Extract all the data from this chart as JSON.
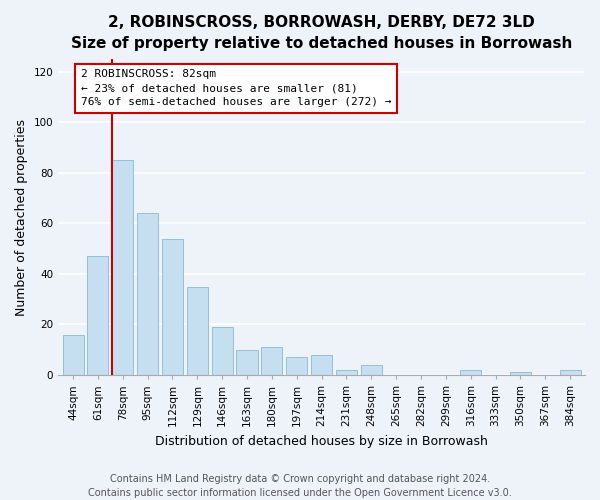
{
  "title": "2, ROBINSCROSS, BORROWASH, DERBY, DE72 3LD",
  "subtitle": "Size of property relative to detached houses in Borrowash",
  "xlabel": "Distribution of detached houses by size in Borrowash",
  "ylabel": "Number of detached properties",
  "bar_color": "#c5dff0",
  "bar_edge_color": "#89b8d4",
  "categories": [
    "44sqm",
    "61sqm",
    "78sqm",
    "95sqm",
    "112sqm",
    "129sqm",
    "146sqm",
    "163sqm",
    "180sqm",
    "197sqm",
    "214sqm",
    "231sqm",
    "248sqm",
    "265sqm",
    "282sqm",
    "299sqm",
    "316sqm",
    "333sqm",
    "350sqm",
    "367sqm",
    "384sqm"
  ],
  "values": [
    16,
    47,
    85,
    64,
    54,
    35,
    19,
    10,
    11,
    7,
    8,
    2,
    4,
    0,
    0,
    0,
    2,
    0,
    1,
    0,
    2
  ],
  "ylim": [
    0,
    125
  ],
  "yticks": [
    0,
    20,
    40,
    60,
    80,
    100,
    120
  ],
  "vline_bar_index": 2,
  "marker_label": "2 ROBINSCROSS: 82sqm",
  "annotation_line1": "← 23% of detached houses are smaller (81)",
  "annotation_line2": "76% of semi-detached houses are larger (272) →",
  "annotation_box_color": "#ffffff",
  "annotation_box_edge": "#cc0000",
  "vline_color": "#cc0000",
  "footer1": "Contains HM Land Registry data © Crown copyright and database right 2024.",
  "footer2": "Contains public sector information licensed under the Open Government Licence v3.0.",
  "background_color": "#eef2f9",
  "plot_background": "#eef2f9",
  "title_fontsize": 11,
  "axis_label_fontsize": 9,
  "tick_fontsize": 7.5,
  "footer_fontsize": 7,
  "annotation_fontsize": 8
}
